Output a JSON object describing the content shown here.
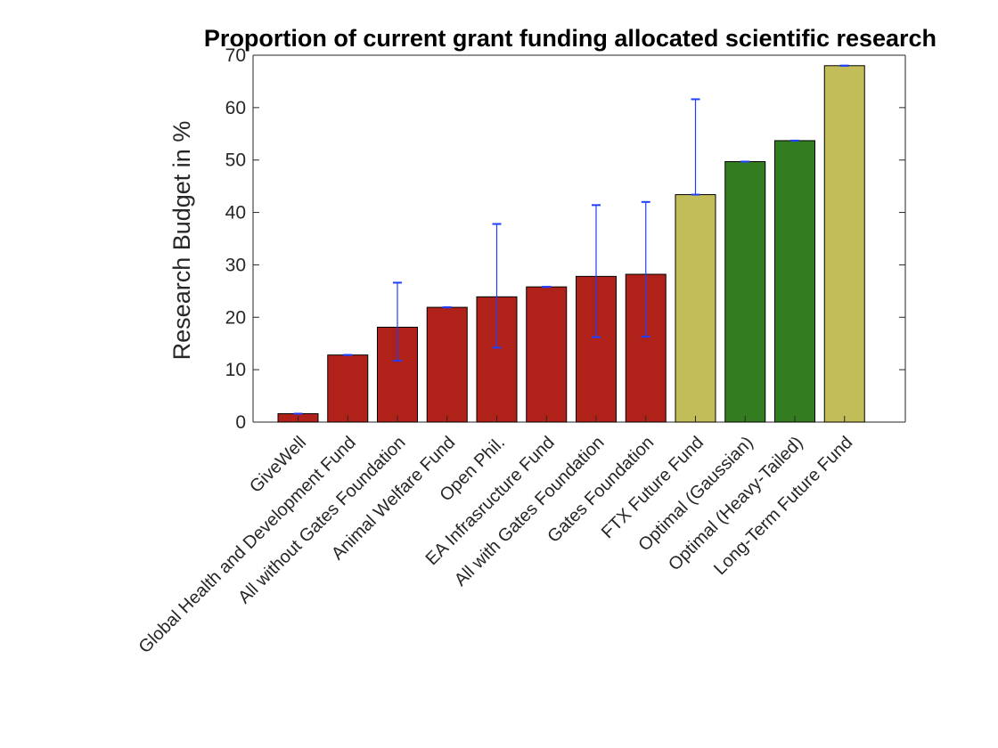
{
  "chart_data": {
    "type": "bar",
    "title": "Proportion of current grant funding allocated scientific research",
    "ylabel": "Research Budget in %",
    "xlabel": "",
    "ylim": [
      0,
      70
    ],
    "yticks": [
      0,
      10,
      20,
      30,
      40,
      50,
      60,
      70
    ],
    "grid": false,
    "categories": [
      "GiveWell",
      "Global Health and Development Fund",
      "All without Gates Foundation",
      "Animal Welfare Fund",
      "Open Phil.",
      "EA Infrasructure Fund",
      "All with Gates Foundation",
      "Gates Foundation",
      "FTX Future Fund",
      "Optimal (Gaussian)",
      "Optimal (Heavy-Tailed)",
      "Long-Term Future Fund"
    ],
    "values": [
      1.6,
      12.8,
      18.1,
      21.9,
      23.9,
      25.8,
      27.8,
      28.2,
      43.4,
      49.7,
      53.7,
      68.0
    ],
    "error_low": [
      1.6,
      12.8,
      11.7,
      21.9,
      14.2,
      25.8,
      16.2,
      16.3,
      43.4,
      49.7,
      53.7,
      68.0
    ],
    "error_high": [
      1.6,
      12.8,
      26.6,
      21.9,
      37.8,
      25.8,
      41.4,
      42.0,
      61.6,
      49.7,
      53.7,
      68.0
    ],
    "bar_colors": [
      "#b0211a",
      "#b0211a",
      "#b0211a",
      "#b0211a",
      "#b0211a",
      "#b0211a",
      "#b0211a",
      "#b0211a",
      "#c2bd58",
      "#347c20",
      "#347c20",
      "#c2bd58"
    ],
    "error_color": "#1f3fff"
  }
}
